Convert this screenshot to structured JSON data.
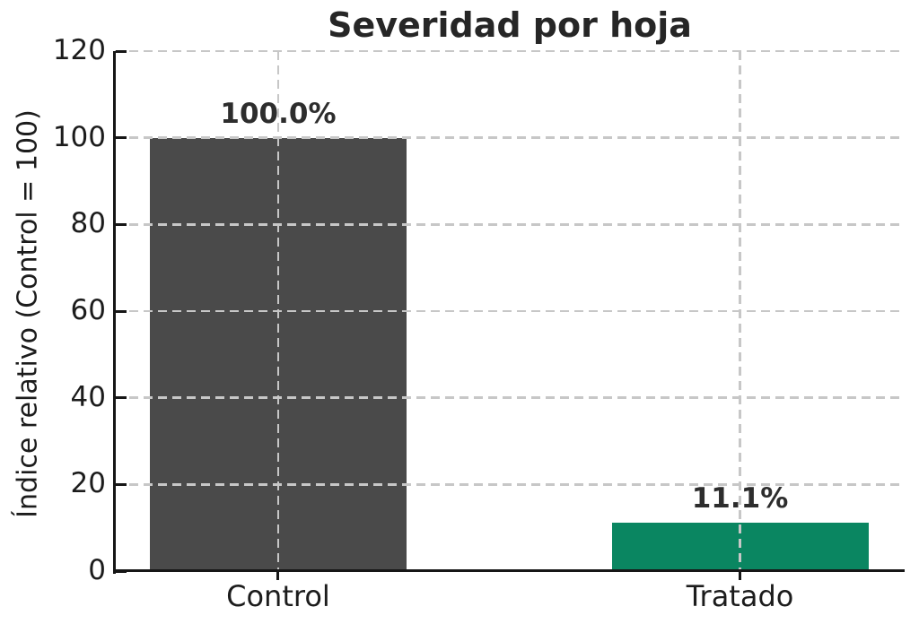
{
  "chart_data": {
    "type": "bar",
    "title": "Severidad por hoja",
    "ylabel": "Índice relativo (Control = 100)",
    "xlabel": "",
    "categories": [
      "Control",
      "Tratado"
    ],
    "values": [
      100.0,
      11.1
    ],
    "bar_labels": [
      "100.0%",
      "11.1%"
    ],
    "bar_colors": [
      "#4a4a4a",
      "#0a8661"
    ],
    "ylim": [
      0,
      120
    ],
    "yticks": [
      0,
      20,
      40,
      60,
      80,
      100,
      120
    ],
    "grid": "dashed-both-axes",
    "grid_color": "#c7c7c7",
    "axis_color": "#161616",
    "text_color": "#1c1c1c",
    "background": "#ffffff",
    "legend": "none"
  }
}
